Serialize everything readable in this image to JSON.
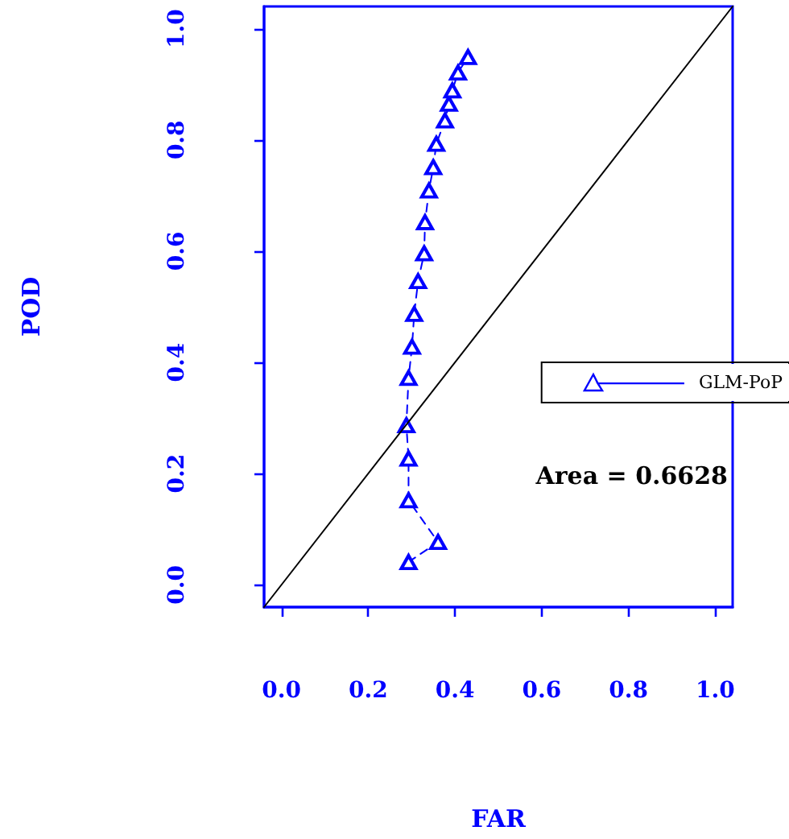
{
  "chart_data": {
    "type": "line",
    "xlabel": "FAR",
    "ylabel": "POD",
    "xlim": [
      -0.04,
      1.04
    ],
    "ylim": [
      -0.04,
      1.04
    ],
    "xticks": [
      {
        "value": 0,
        "label": "0.0"
      },
      0.2,
      0.4,
      0.6,
      0.8,
      {
        "value": 1,
        "label": "1.0"
      }
    ],
    "yticks": [
      {
        "value": 0,
        "label": "0.0"
      },
      0.2,
      0.4,
      0.6,
      0.8,
      {
        "value": 1,
        "label": "1.0"
      }
    ],
    "grid": false,
    "legend": "right",
    "marker": "triangle",
    "line_style": "dashed",
    "series": [
      {
        "name": "GLM-PoP",
        "color": "#0000ff",
        "x": [
          0.293,
          0.361,
          0.293,
          0.293,
          0.288,
          0.293,
          0.301,
          0.306,
          0.315,
          0.329,
          0.331,
          0.34,
          0.35,
          0.357,
          0.377,
          0.386,
          0.394,
          0.407,
          0.43
        ],
        "values": [
          0.041,
          0.077,
          0.152,
          0.227,
          0.287,
          0.372,
          0.428,
          0.487,
          0.546,
          0.596,
          0.652,
          0.709,
          0.751,
          0.793,
          0.835,
          0.865,
          0.889,
          0.921,
          0.949
        ]
      },
      {
        "type": "line",
        "color": "#000000",
        "marker": "none",
        "line_style": "solid",
        "x": [
          -0.04,
          1.04
        ],
        "values": [
          -0.04,
          1.04
        ]
      }
    ],
    "annotations": [
      "Area = 0.6628"
    ]
  }
}
